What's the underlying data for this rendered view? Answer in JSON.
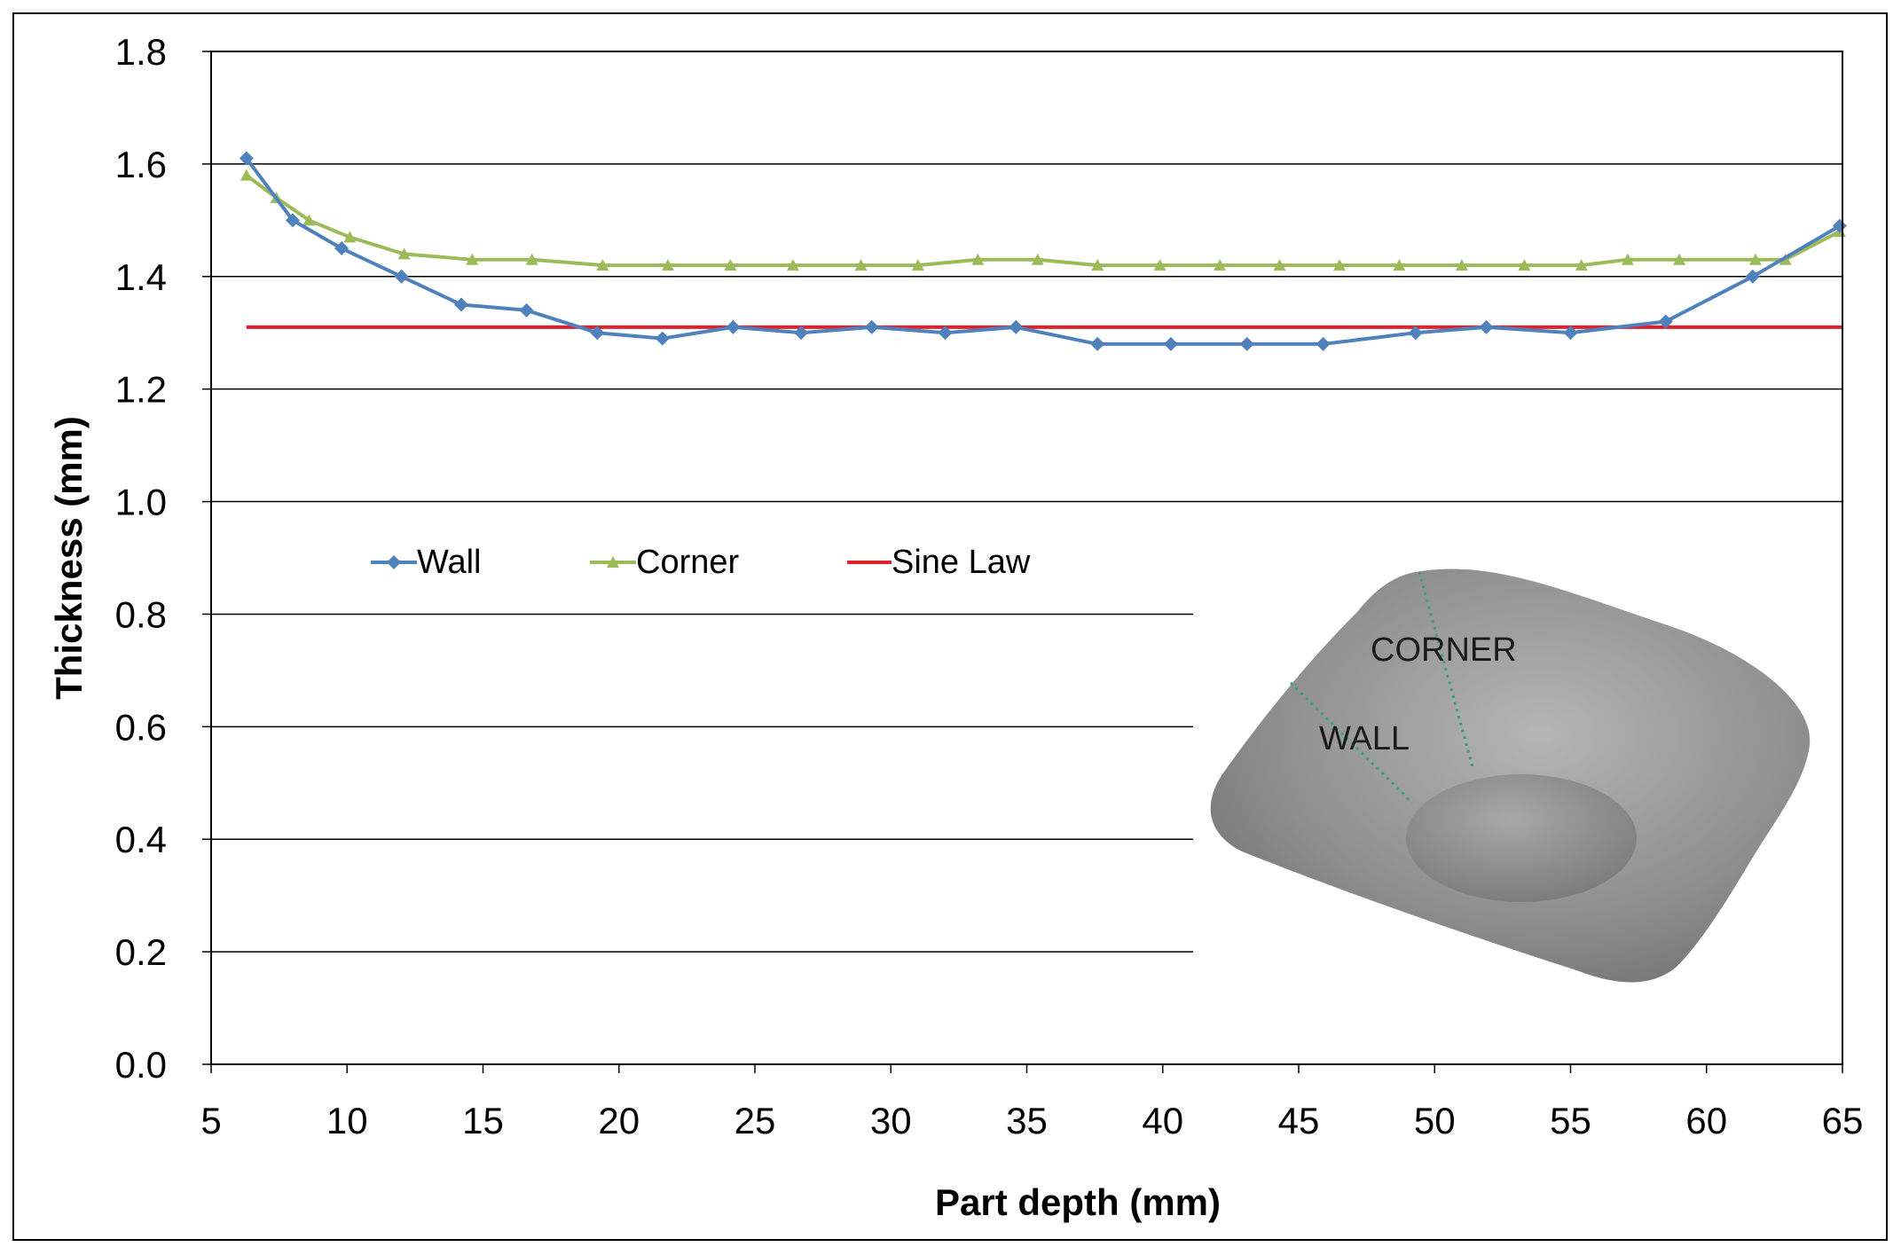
{
  "chart_data": {
    "type": "line",
    "title": "",
    "xlabel": "Part depth (mm)",
    "ylabel": "Thickness (mm)",
    "xlim": [
      5,
      65
    ],
    "ylim": [
      0.0,
      1.8
    ],
    "x_ticks": [
      "5",
      "10",
      "15",
      "20",
      "25",
      "30",
      "35",
      "40",
      "45",
      "50",
      "55",
      "60",
      "65"
    ],
    "y_ticks": [
      "0.0",
      "0.2",
      "0.4",
      "0.6",
      "0.8",
      "1.0",
      "1.2",
      "1.4",
      "1.6",
      "1.8"
    ],
    "grid": "horizontal",
    "legend_position": "middle-left, single row",
    "series": [
      {
        "name": "Wall",
        "color": "#4f81bd",
        "marker": "diamond",
        "x": [
          6.3,
          8.0,
          9.8,
          12.0,
          14.2,
          16.6,
          19.2,
          21.6,
          24.2,
          26.7,
          29.3,
          32.0,
          34.6,
          37.6,
          40.3,
          43.1,
          45.9,
          49.3,
          51.9,
          55.0,
          58.5,
          61.7,
          64.9
        ],
        "y": [
          1.61,
          1.5,
          1.45,
          1.4,
          1.35,
          1.34,
          1.3,
          1.29,
          1.31,
          1.3,
          1.31,
          1.3,
          1.31,
          1.28,
          1.28,
          1.28,
          1.28,
          1.3,
          1.31,
          1.3,
          1.32,
          1.4,
          1.49
        ]
      },
      {
        "name": "Corner",
        "color": "#9bbb59",
        "marker": "triangle",
        "x": [
          6.3,
          7.4,
          8.6,
          10.1,
          12.1,
          14.6,
          16.8,
          19.4,
          21.8,
          24.1,
          26.4,
          28.9,
          31.0,
          33.2,
          35.4,
          37.6,
          39.9,
          42.1,
          44.3,
          46.5,
          48.7,
          51.0,
          53.3,
          55.4,
          57.1,
          59.0,
          61.8,
          62.9,
          64.9
        ],
        "y": [
          1.58,
          1.54,
          1.5,
          1.47,
          1.44,
          1.43,
          1.43,
          1.42,
          1.42,
          1.42,
          1.42,
          1.42,
          1.42,
          1.43,
          1.43,
          1.42,
          1.42,
          1.42,
          1.42,
          1.42,
          1.42,
          1.42,
          1.42,
          1.42,
          1.43,
          1.43,
          1.43,
          1.43,
          1.48
        ]
      },
      {
        "name": "Sine Law",
        "color": "#e0202b",
        "marker": "none",
        "x": [
          6.3,
          65
        ],
        "y": [
          1.31,
          1.31
        ]
      }
    ],
    "inset": {
      "description_labels": [
        "CORNER",
        "WALL"
      ]
    }
  }
}
